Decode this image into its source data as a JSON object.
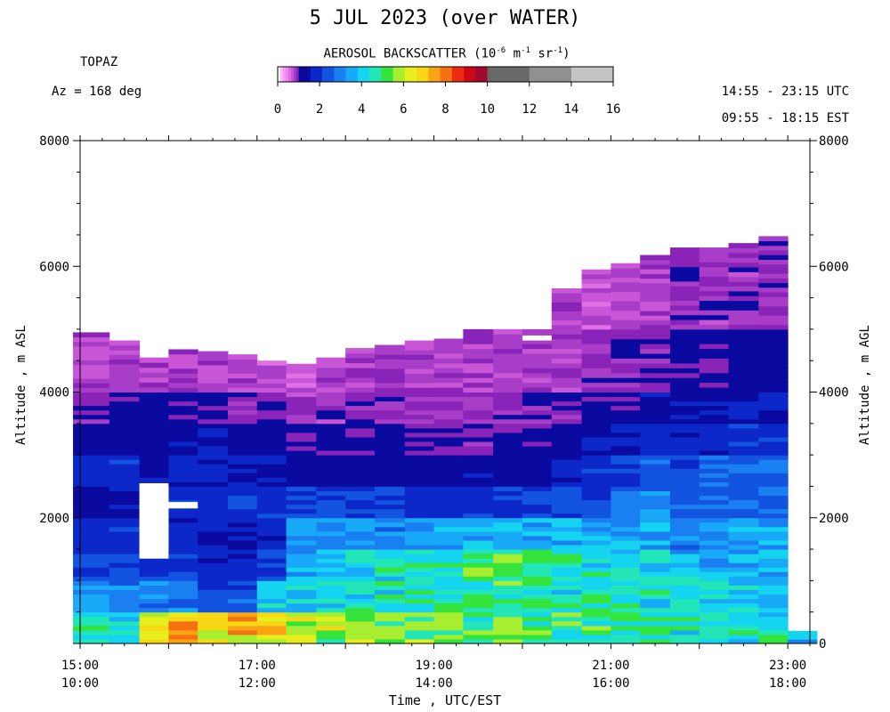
{
  "header": {
    "title": "5 JUL 2023 (over WATER)",
    "instrument": "TOPAZ",
    "azimuth": "Az = 168 deg",
    "utc_range": "14:55 - 23:15 UTC",
    "est_range": "09:55 - 18:15 EST"
  },
  "colorbar": {
    "title_prefix": "AEROSOL BACKSCATTER (10",
    "exp1": "-6",
    "mid1": " m",
    "exp2": "-1",
    "mid2": " sr",
    "exp3": "-1",
    "suffix": ")",
    "ticks": [
      "0",
      "2",
      "4",
      "6",
      "8",
      "10",
      "12",
      "14",
      "16"
    ],
    "colors": [
      "#ffffff",
      "#ffb3ff",
      "#f79af7",
      "#ee86ee",
      "#e070e6",
      "#c856d6",
      "#a83ec8",
      "#8a24b8",
      "#0a0aa0",
      "#0c28c8",
      "#1254e0",
      "#1a7ff0",
      "#18aaf8",
      "#14d4f0",
      "#22e6b8",
      "#34e43c",
      "#a8ee30",
      "#e6ee1c",
      "#f8d814",
      "#f8a414",
      "#f47010",
      "#ee2a10",
      "#cc0818",
      "#a00830",
      "#686868",
      "#909090",
      "#c4c4c4"
    ]
  },
  "chart_data": {
    "type": "heatmap",
    "title": "5 JUL 2023 (over WATER)",
    "xlabel": "Time , UTC/EST",
    "ylabel_left": "Altitude , m ASL",
    "ylabel_right": "Altitude , m AGL",
    "xlim": [
      15.0,
      23.25
    ],
    "ylim": [
      0,
      8000
    ],
    "x_ticks": [
      {
        "value": 15,
        "utc": "15:00",
        "est": "10:00"
      },
      {
        "value": 17,
        "utc": "17:00",
        "est": "12:00"
      },
      {
        "value": 19,
        "utc": "19:00",
        "est": "14:00"
      },
      {
        "value": 21,
        "utc": "21:00",
        "est": "16:00"
      },
      {
        "value": 23,
        "utc": "23:00",
        "est": "18:00"
      }
    ],
    "y_ticks_left": [
      "2000",
      "4000",
      "6000",
      "8000"
    ],
    "y_ticks_right": [
      "0",
      "2000",
      "4000",
      "6000",
      "8000"
    ],
    "value_units": "10^-6 m^-1 sr^-1",
    "value_range": [
      0,
      16
    ],
    "profile_start_utc": [
      14.92,
      15.33,
      15.67,
      16.0,
      16.33,
      16.67,
      17.0,
      17.33,
      17.67,
      18.0,
      18.33,
      18.67,
      19.0,
      19.33,
      19.67,
      20.0,
      20.33,
      20.67,
      21.0,
      21.33,
      21.67,
      22.0,
      22.33,
      22.67,
      23.0
    ],
    "profile_top_altitude_m": [
      4950,
      4820,
      4550,
      4680,
      4650,
      4600,
      4500,
      4450,
      4550,
      4700,
      4750,
      4820,
      4850,
      5000,
      5200,
      5350,
      5650,
      5950,
      6050,
      6180,
      6300,
      6300,
      6370,
      6480,
      200
    ],
    "layer_top_altitude_m": [
      500,
      1000,
      1500,
      2000,
      2500,
      3000,
      3500,
      4000,
      5000,
      7000
    ],
    "backscatter_by_layer": [
      [
        4.5,
        4.2,
        6.5,
        7.5,
        6.2,
        6.8,
        6.8,
        6.0,
        5.8,
        5.8,
        5.7,
        5.6,
        5.4,
        5.2,
        5.2,
        5.2,
        5.0,
        4.8,
        4.7,
        4.7,
        4.6,
        4.5,
        4.5,
        4.4,
        3.8
      ],
      [
        3.2,
        3.0,
        3.0,
        3.0,
        2.4,
        2.4,
        4.2,
        4.2,
        4.3,
        4.4,
        4.5,
        4.6,
        4.6,
        4.7,
        4.8,
        4.8,
        4.6,
        4.6,
        4.4,
        4.3,
        4.2,
        4.0,
        4.0,
        3.9,
        null
      ],
      [
        2.3,
        2.2,
        2.0,
        2.1,
        1.8,
        1.8,
        2.2,
        3.6,
        3.8,
        4.0,
        4.4,
        4.6,
        4.8,
        5.0,
        5.1,
        4.8,
        4.6,
        4.4,
        4.3,
        4.2,
        3.9,
        3.8,
        3.7,
        3.6,
        null
      ],
      [
        1.8,
        1.9,
        null,
        1.7,
        1.6,
        1.6,
        1.8,
        3.2,
        3.4,
        3.2,
        3.1,
        3.4,
        3.4,
        3.6,
        3.5,
        3.6,
        3.8,
        3.5,
        3.4,
        3.3,
        3.0,
        3.2,
        3.4,
        3.6,
        null
      ],
      [
        1.3,
        1.4,
        null,
        1.9,
        1.9,
        2.0,
        2.0,
        2.2,
        2.3,
        2.0,
        2.0,
        1.8,
        1.9,
        1.9,
        2.0,
        2.2,
        2.4,
        2.3,
        2.8,
        3.0,
        2.4,
        2.6,
        2.6,
        2.8,
        null
      ],
      [
        1.8,
        1.9,
        1.6,
        1.7,
        1.7,
        1.6,
        1.5,
        1.3,
        1.2,
        1.3,
        1.2,
        1.2,
        1.3,
        1.4,
        1.2,
        1.4,
        1.6,
        2.0,
        2.4,
        2.6,
        2.2,
        2.6,
        2.6,
        2.8,
        null
      ],
      [
        1.3,
        1.4,
        1.3,
        1.4,
        1.5,
        1.3,
        1.2,
        1.1,
        1.1,
        1.0,
        1.1,
        1.1,
        1.0,
        1.0,
        1.1,
        1.1,
        1.3,
        1.5,
        1.7,
        1.9,
        1.8,
        1.8,
        1.9,
        2.0,
        null
      ],
      [
        1.0,
        1.1,
        1.2,
        1.1,
        1.0,
        1.0,
        1.0,
        0.9,
        0.9,
        0.9,
        0.9,
        0.9,
        0.9,
        0.9,
        0.9,
        1.0,
        1.0,
        1.1,
        1.2,
        1.4,
        1.4,
        1.5,
        1.5,
        1.6,
        null
      ],
      [
        0.8,
        0.8,
        0.8,
        0.8,
        0.8,
        0.8,
        0.7,
        0.7,
        0.8,
        0.8,
        0.8,
        0.8,
        0.8,
        0.8,
        0.8,
        0.8,
        0.8,
        0.9,
        1.0,
        1.0,
        1.1,
        1.1,
        1.2,
        1.2,
        null
      ],
      [
        null,
        null,
        null,
        null,
        null,
        null,
        null,
        null,
        null,
        null,
        null,
        null,
        null,
        null,
        null,
        null,
        0.8,
        0.7,
        0.8,
        0.8,
        0.9,
        0.9,
        0.9,
        0.9,
        null
      ]
    ],
    "missing_data_gaps": [
      {
        "x_start": 15.67,
        "x_end": 16.0,
        "y_start": 1350,
        "y_end": 2550
      },
      {
        "x_start": 16.0,
        "x_end": 16.33,
        "y_start": 2150,
        "y_end": 2250
      },
      {
        "x_start": 20.0,
        "x_end": 20.33,
        "y_start": 4820,
        "y_end": 4900
      }
    ]
  }
}
